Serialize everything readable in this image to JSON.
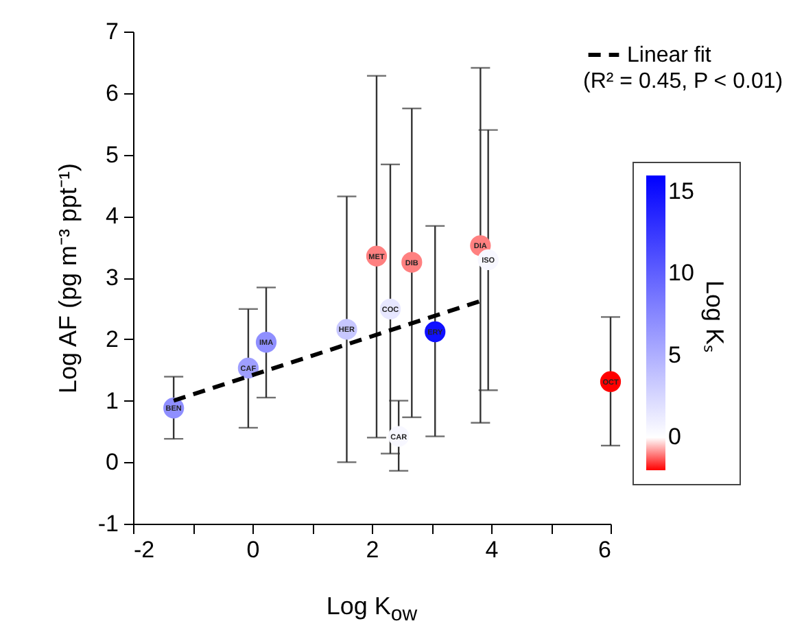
{
  "chart_data": {
    "type": "scatter",
    "xlabel": "Log K$_{ow}$",
    "ylabel": "Log AF (pg m⁻³ ppt⁻¹)",
    "legend_title": "Log Kₛ",
    "xlim": [
      -2,
      6
    ],
    "xticks": [
      -2,
      {
        "value": -1,
        "label": null
      },
      0,
      {
        "value": 1,
        "label": null
      },
      2,
      {
        "value": 3,
        "label": null
      },
      4,
      {
        "value": 5,
        "label": null
      },
      6
    ],
    "ylim": [
      -1,
      7
    ],
    "yticks": [
      -1,
      0,
      1,
      2,
      3,
      4,
      5,
      6,
      7
    ],
    "clim": [
      -2,
      16
    ],
    "cticks": [
      0,
      5,
      10,
      15
    ],
    "legend": "top right",
    "annotations": [
      {
        "text": "BEN",
        "x": -1.32,
        "y": 0.88
      },
      {
        "text": "CAF",
        "x": -0.07,
        "y": 1.53
      },
      {
        "text": "IMA",
        "x": 0.23,
        "y": 1.95
      },
      {
        "text": "HER",
        "x": 1.58,
        "y": 2.16
      },
      {
        "text": "MET",
        "x": 2.08,
        "y": 3.35
      },
      {
        "text": "COC",
        "x": 2.31,
        "y": 2.49
      },
      {
        "text": "DIB",
        "x": 2.67,
        "y": 3.25
      },
      {
        "text": "CAR",
        "x": 2.45,
        "y": 0.42
      },
      {
        "text": "ERY",
        "x": 3.06,
        "y": 2.12
      },
      {
        "text": "DIA",
        "x": 3.82,
        "y": 3.52
      },
      {
        "text": "ISO",
        "x": 3.95,
        "y": 3.29
      },
      {
        "text": "OCT",
        "x": 6.0,
        "y": 1.31
      },
      "(R² = 0.45, P < 0.01)"
    ],
    "series": [
      {
        "type": "scatter",
        "x": [
          -1.32,
          -0.07,
          0.23,
          1.58,
          2.08,
          2.31,
          2.67,
          2.45,
          3.06,
          3.82,
          3.95,
          6.0
        ],
        "values": [
          0.88,
          1.53,
          1.95,
          2.16,
          3.35,
          2.49,
          3.25,
          0.42,
          2.12,
          3.52,
          3.29,
          1.31
        ],
        "colors": [
          "#8f8fff",
          "#9f9fff",
          "#8f8fff",
          "#c7c7ff",
          "#ff8080",
          "#e7e7ff",
          "#ff8080",
          "#f7f7ff",
          "#1010ff",
          "#ff8080",
          "#f7f7ff",
          "#ff0000"
        ],
        "marker": "circle",
        "cvalues": [
          7,
          6,
          7,
          3.5,
          -1,
          1.5,
          -1,
          0.5,
          15,
          -1,
          0.5,
          -2
        ],
        "errors": [
          [
            0.38,
            1.39
          ],
          [
            0.56,
            2.49
          ],
          [
            1.05,
            2.84
          ],
          [
            0.0,
            4.32
          ],
          [
            0.4,
            6.28
          ],
          [
            0.14,
            4.84
          ],
          [
            0.73,
            5.75
          ],
          [
            -0.14,
            1.0
          ],
          [
            0.42,
            3.84
          ],
          [
            0.64,
            6.41
          ],
          [
            1.17,
            5.4
          ],
          [
            0.27,
            2.36
          ]
        ]
      },
      {
        "type": "line",
        "name": "Linear fit",
        "color": "#000000",
        "line_style": "dashed",
        "marker": "none",
        "x": [
          -1.32,
          3.82
        ],
        "values": [
          1.0,
          2.62
        ]
      }
    ]
  }
}
